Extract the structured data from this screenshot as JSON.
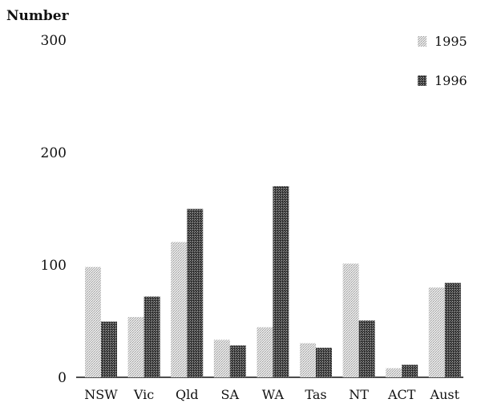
{
  "chart_data": {
    "type": "bar",
    "ylabel": "Number",
    "ylim": [
      0,
      300
    ],
    "yticks": [
      "0",
      "100",
      "200",
      "300"
    ],
    "categories": [
      "NSW",
      "Vic",
      "Qld",
      "SA",
      "WA",
      "Tas",
      "NT",
      "ACT",
      "Aust"
    ],
    "series": [
      {
        "name": "1995",
        "color": "#cfcfcf",
        "values": [
          97,
          53,
          119,
          33,
          44,
          30,
          100,
          8,
          79
        ]
      },
      {
        "name": "1996",
        "color": "#5a5a5a",
        "values": [
          49,
          71,
          148,
          28,
          168,
          26,
          50,
          11,
          83
        ]
      }
    ],
    "legend_position": "top-right",
    "grid": false
  }
}
